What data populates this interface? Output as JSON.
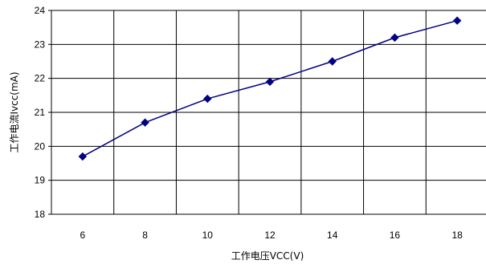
{
  "chart_data": {
    "type": "line",
    "title": "",
    "xlabel": "工作电压VCC(V)",
    "ylabel": "工作电流Ivcc(mA)",
    "x": [
      6,
      8,
      10,
      12,
      14,
      16,
      18
    ],
    "series": [
      {
        "values": [
          19.7,
          20.7,
          21.4,
          21.9,
          22.5,
          23.2,
          23.7
        ]
      }
    ],
    "x_categories": [
      "6",
      "8",
      "10",
      "12",
      "14",
      "16",
      "18"
    ],
    "y_ticks": [
      18,
      19,
      20,
      21,
      22,
      23,
      24
    ],
    "ylim": [
      18,
      24
    ],
    "grid": true,
    "legend": "none",
    "marker": "diamond",
    "line_color": "#000080",
    "marker_color": "#000080",
    "grid_color": "#000000"
  }
}
